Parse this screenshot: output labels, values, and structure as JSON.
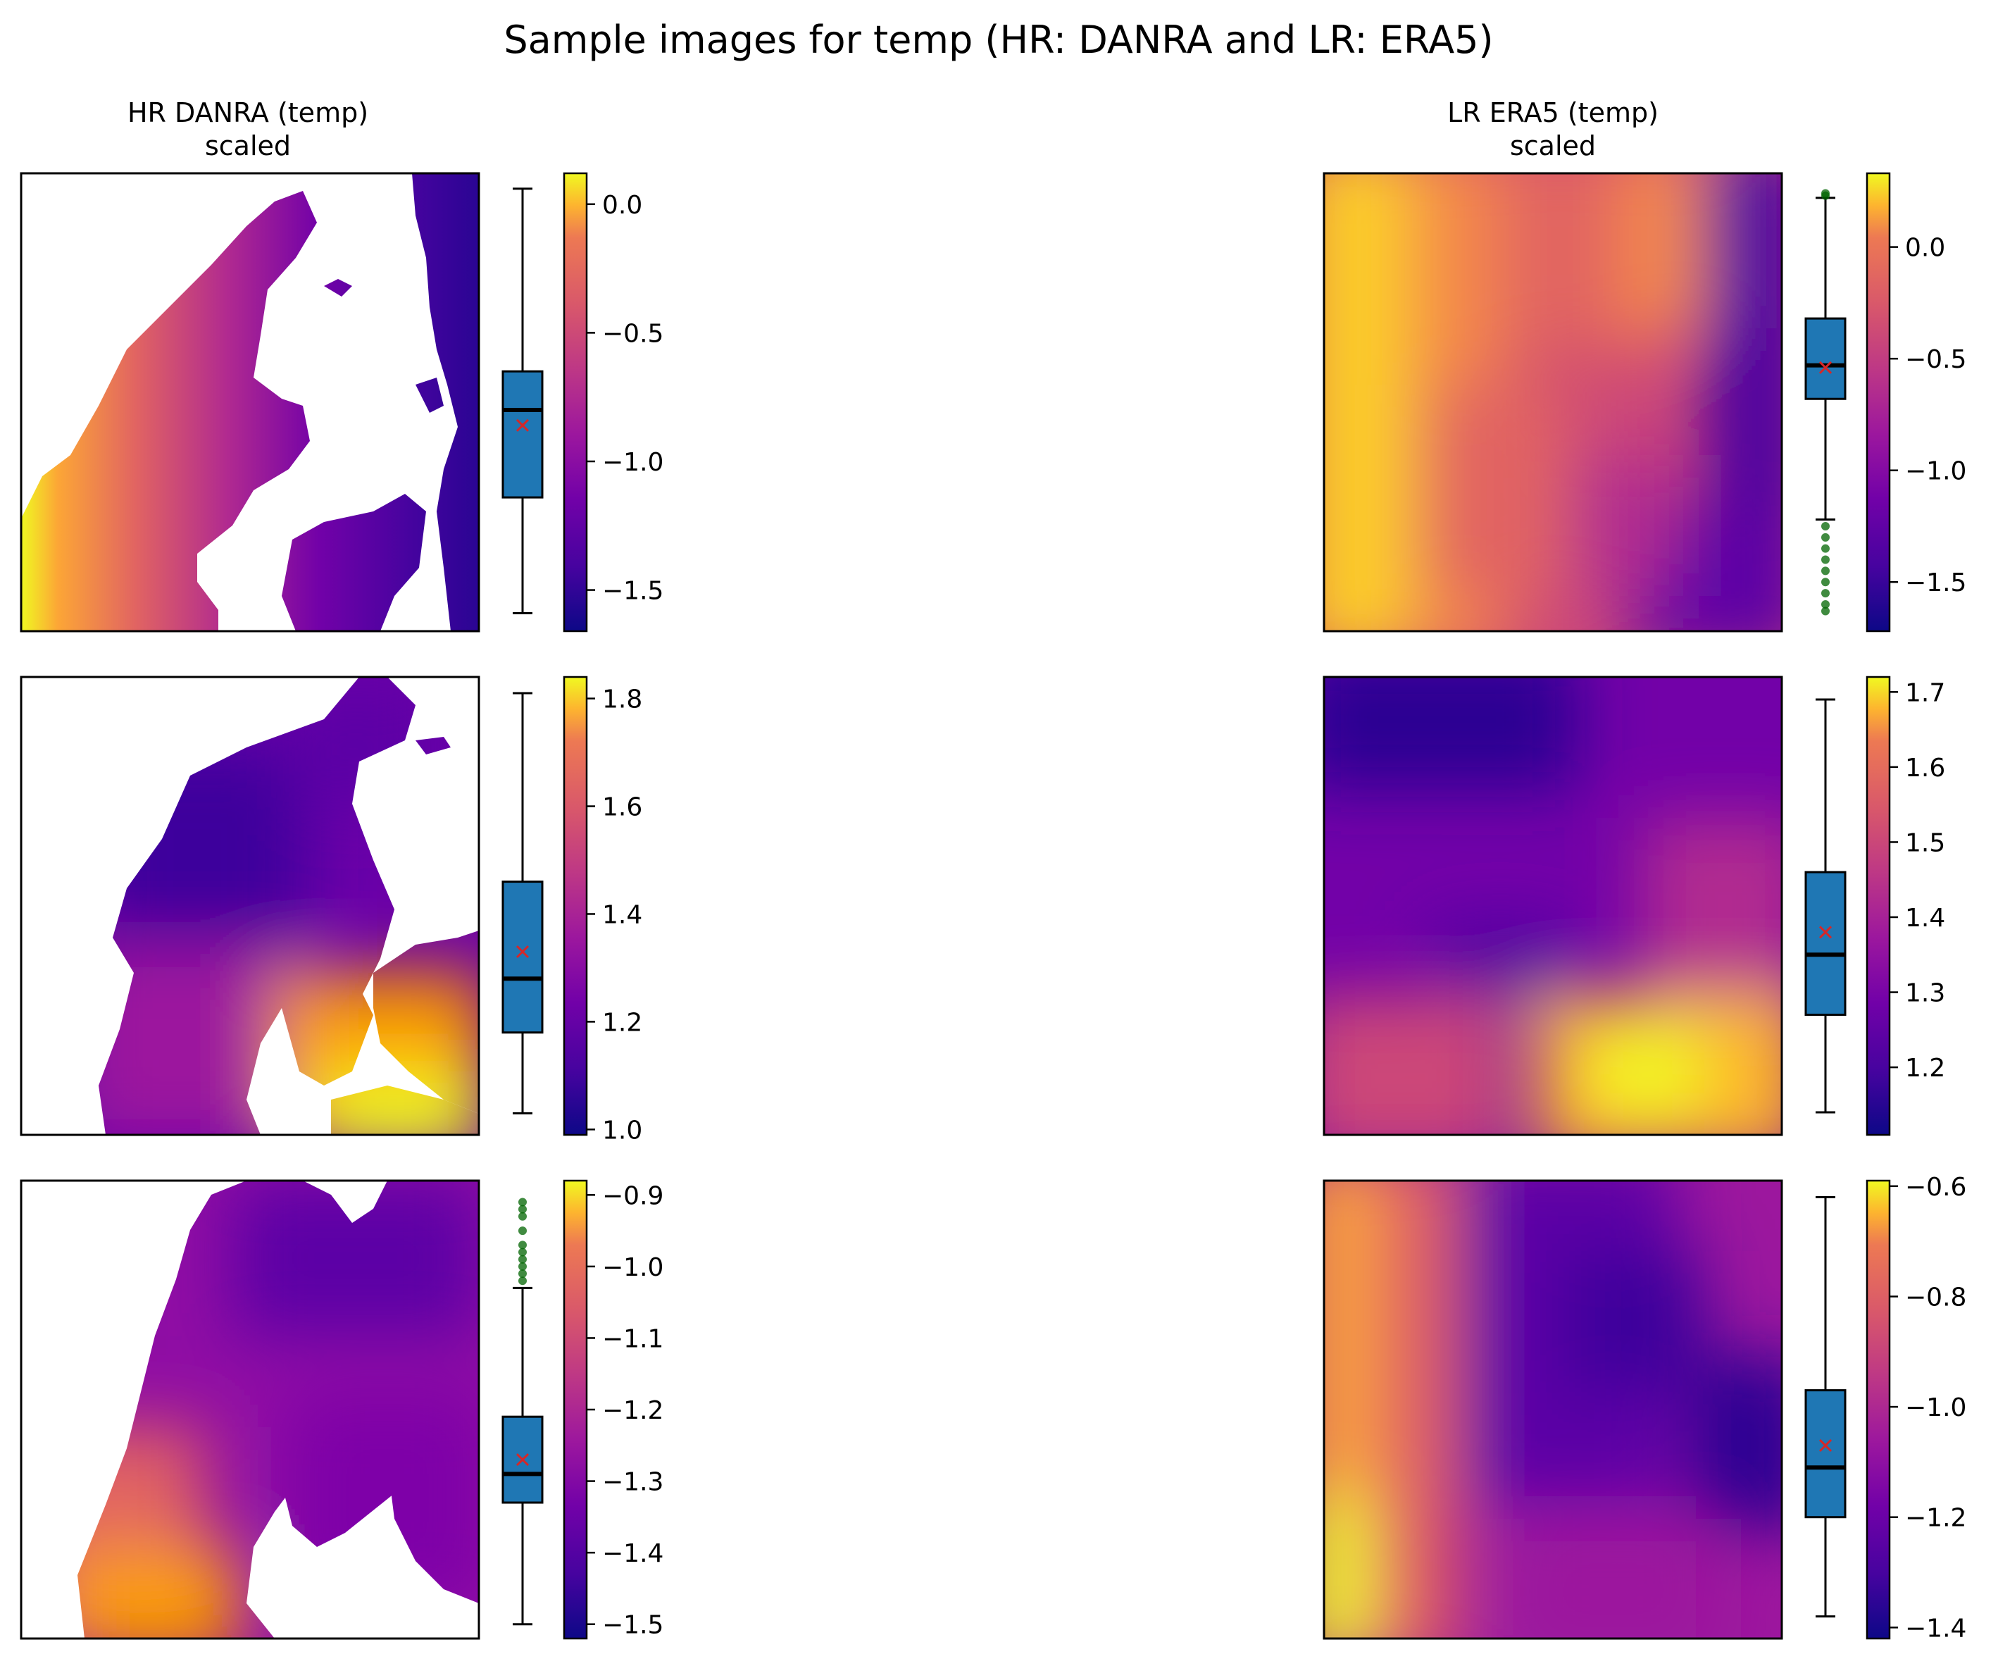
{
  "figure": {
    "title": "Sample images for temp (HR: DANRA and LR: ERA5)",
    "colormap": "plasma",
    "colors": {
      "box_fill": "#1f77b4",
      "median": "#000000",
      "mean_marker": "#d62728",
      "outliers": "#006400",
      "land_mask": "#ffffff"
    }
  },
  "chart_data": [
    {
      "type": "heatmap_with_boxplot",
      "dataset": "HR DANRA",
      "title": "HR DANRA (temp)\nscaled",
      "colorbar": {
        "range": [
          -1.66,
          0.12
        ],
        "ticks": [
          -1.5,
          -1.0,
          -0.5,
          0.0
        ]
      },
      "box": {
        "whisker_low": -1.59,
        "q1": -1.14,
        "median": -0.8,
        "q3": -0.65,
        "whisker_high": 0.06,
        "mean": -0.86,
        "outliers": []
      }
    },
    {
      "type": "heatmap_with_boxplot",
      "dataset": "LR ERA5",
      "title": "LR ERA5 (temp)\nscaled",
      "colorbar": {
        "range": [
          -1.72,
          0.33
        ],
        "ticks": [
          -1.5,
          -1.0,
          -0.5,
          0.0
        ]
      },
      "box": {
        "whisker_low": -1.22,
        "q1": -0.68,
        "median": -0.53,
        "q3": -0.32,
        "whisker_high": 0.22,
        "mean": -0.54,
        "outliers": [
          0.23,
          0.24,
          -1.25,
          -1.3,
          -1.35,
          -1.4,
          -1.45,
          -1.5,
          -1.55,
          -1.6,
          -1.63
        ]
      }
    },
    {
      "type": "heatmap_with_boxplot",
      "dataset": "HR DANRA",
      "title": "",
      "colorbar": {
        "range": [
          0.99,
          1.84
        ],
        "ticks": [
          1.0,
          1.2,
          1.4,
          1.6,
          1.8
        ]
      },
      "box": {
        "whisker_low": 1.03,
        "q1": 1.18,
        "median": 1.28,
        "q3": 1.46,
        "whisker_high": 1.81,
        "mean": 1.33,
        "outliers": []
      }
    },
    {
      "type": "heatmap_with_boxplot",
      "dataset": "LR ERA5",
      "title": "",
      "colorbar": {
        "range": [
          1.11,
          1.72
        ],
        "ticks": [
          1.2,
          1.3,
          1.4,
          1.5,
          1.6,
          1.7
        ]
      },
      "box": {
        "whisker_low": 1.14,
        "q1": 1.27,
        "median": 1.35,
        "q3": 1.46,
        "whisker_high": 1.69,
        "mean": 1.38,
        "outliers": []
      }
    },
    {
      "type": "heatmap_with_boxplot",
      "dataset": "HR DANRA",
      "title": "",
      "colorbar": {
        "range": [
          -1.52,
          -0.88
        ],
        "ticks": [
          -1.5,
          -1.4,
          -1.3,
          -1.2,
          -1.1,
          -1.0,
          -0.9
        ]
      },
      "box": {
        "whisker_low": -1.5,
        "q1": -1.33,
        "median": -1.29,
        "q3": -1.21,
        "whisker_high": -1.03,
        "mean": -1.27,
        "outliers": [
          -1.02,
          -1.01,
          -1.0,
          -0.99,
          -0.98,
          -0.97,
          -0.95,
          -0.93,
          -0.92,
          -0.91
        ]
      }
    },
    {
      "type": "heatmap_with_boxplot",
      "dataset": "LR ERA5",
      "title": "",
      "colorbar": {
        "range": [
          -1.42,
          -0.59
        ],
        "ticks": [
          -1.4,
          -1.2,
          -1.0,
          -0.8,
          -0.6
        ]
      },
      "box": {
        "whisker_low": -1.38,
        "q1": -1.2,
        "median": -1.11,
        "q3": -0.97,
        "whisker_high": -0.62,
        "mean": -1.07,
        "outliers": []
      }
    }
  ]
}
